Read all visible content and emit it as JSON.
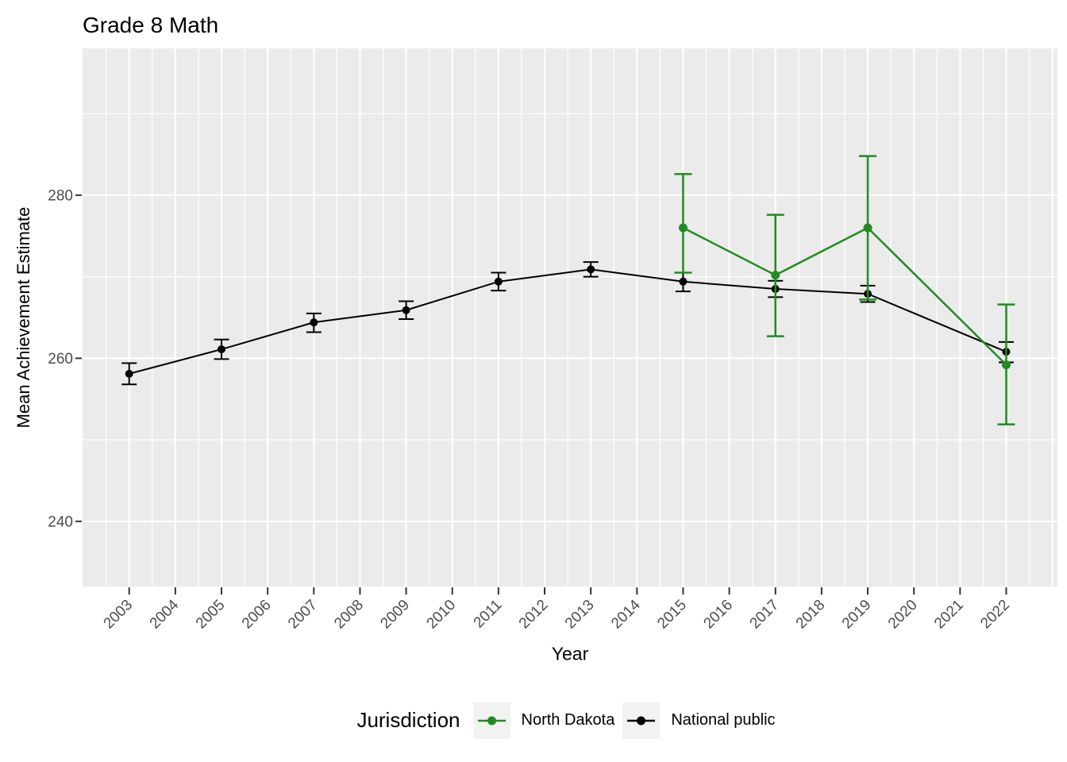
{
  "title": "Grade 8 Math",
  "x_axis": {
    "title": "Year",
    "ticks": [
      2003,
      2004,
      2005,
      2006,
      2007,
      2008,
      2009,
      2010,
      2011,
      2012,
      2013,
      2014,
      2015,
      2016,
      2017,
      2018,
      2019,
      2020,
      2021,
      2022
    ],
    "extra_major_gridlines": [
      2023
    ],
    "minor_gridlines": [
      2002.5,
      2003.5,
      2004.5,
      2005.5,
      2006.5,
      2007.5,
      2008.5,
      2009.5,
      2010.5,
      2011.5,
      2012.5,
      2013.5,
      2014.5,
      2015.5,
      2016.5,
      2017.5,
      2018.5,
      2019.5,
      2020.5,
      2021.5,
      2022.5
    ],
    "domain": [
      2001.99,
      2023.11
    ]
  },
  "y_axis": {
    "title": "Mean Achievement Estimate",
    "ticks": [
      240,
      260,
      280
    ],
    "minor_gridlines": [
      250,
      270,
      290
    ],
    "domain": [
      232,
      298
    ]
  },
  "legend": {
    "title": "Jurisdiction",
    "entries": [
      {
        "label": "North Dakota",
        "color": "#228B22"
      },
      {
        "label": "National public",
        "color": "#000000"
      }
    ]
  },
  "colors": {
    "panel_bg": "#EBEBEB",
    "grid": "#FFFFFF",
    "tick": "#333333",
    "tick_label": "#4D4D4D",
    "legend_key_bg": "#F2F2F2"
  },
  "chart_data": {
    "type": "line",
    "title": "Grade 8 Math",
    "xlabel": "Year",
    "ylabel": "Mean Achievement Estimate",
    "xlim": [
      2002,
      2023
    ],
    "ylim": [
      232,
      298
    ],
    "error_bars": true,
    "legend_position": "bottom",
    "series": [
      {
        "name": "North Dakota",
        "color": "#228B22",
        "points": [
          {
            "x": 2015,
            "y": 276.0,
            "lo": 270.5,
            "hi": 282.6
          },
          {
            "x": 2017,
            "y": 270.2,
            "lo": 262.7,
            "hi": 277.6
          },
          {
            "x": 2019,
            "y": 276.0,
            "lo": 267.2,
            "hi": 284.8
          },
          {
            "x": 2022,
            "y": 259.2,
            "lo": 251.9,
            "hi": 266.6
          }
        ]
      },
      {
        "name": "National public",
        "color": "#000000",
        "points": [
          {
            "x": 2003,
            "y": 258.1,
            "lo": 256.8,
            "hi": 259.4
          },
          {
            "x": 2005,
            "y": 261.1,
            "lo": 259.9,
            "hi": 262.3
          },
          {
            "x": 2007,
            "y": 264.4,
            "lo": 263.2,
            "hi": 265.5
          },
          {
            "x": 2009,
            "y": 265.9,
            "lo": 264.8,
            "hi": 267.0
          },
          {
            "x": 2011,
            "y": 269.4,
            "lo": 268.3,
            "hi": 270.5
          },
          {
            "x": 2013,
            "y": 270.9,
            "lo": 270.0,
            "hi": 271.8
          },
          {
            "x": 2015,
            "y": 269.4,
            "lo": 268.2,
            "hi": 270.5
          },
          {
            "x": 2017,
            "y": 268.5,
            "lo": 267.5,
            "hi": 269.5
          },
          {
            "x": 2019,
            "y": 267.9,
            "lo": 266.9,
            "hi": 268.9
          },
          {
            "x": 2022,
            "y": 260.8,
            "lo": 259.5,
            "hi": 262.0
          }
        ]
      }
    ]
  }
}
